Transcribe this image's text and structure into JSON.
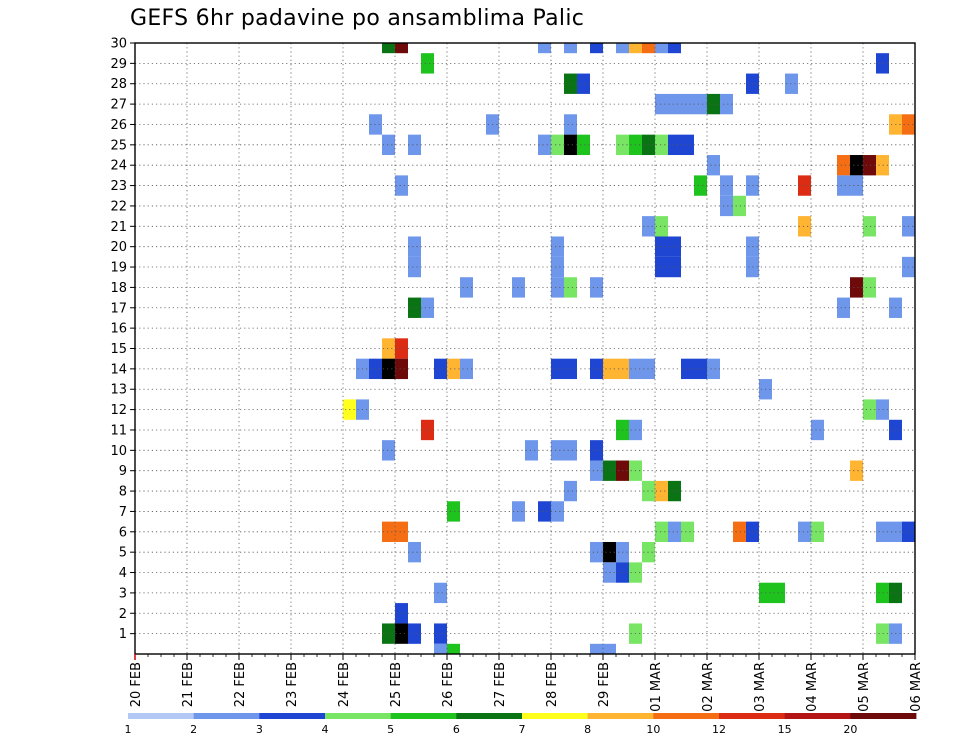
{
  "chart_data": {
    "type": "heatmap",
    "title": "GEFS 6hr padavine po ansamblima Palic",
    "y_ticks": [
      1,
      2,
      3,
      4,
      5,
      6,
      7,
      8,
      9,
      10,
      11,
      12,
      13,
      14,
      15,
      16,
      17,
      18,
      19,
      20,
      21,
      22,
      23,
      24,
      25,
      26,
      27,
      28,
      29,
      30
    ],
    "ylim": [
      0,
      30
    ],
    "x_ticks": [
      "20 FEB",
      "21 FEB",
      "22 FEB",
      "23 FEB",
      "24 FEB",
      "25 FEB",
      "26 FEB",
      "27 FEB",
      "28 FEB",
      "29 FEB",
      "01 MAR",
      "02 MAR",
      "03 MAR",
      "04 MAR",
      "05 MAR",
      "06 MAR"
    ],
    "x_step": "6hr",
    "grid": true,
    "colorbar": {
      "labels": [
        "1",
        "2",
        "3",
        "4",
        "5",
        "6",
        "7",
        "8",
        "10",
        "12",
        "15",
        "20"
      ],
      "colors": [
        "#b4c8f5",
        "#6e96eb",
        "#1e46d2",
        "#78e664",
        "#1ec31e",
        "#0a7314",
        "#ffff1e",
        "#ffb432",
        "#f56e14",
        "#dc2d14",
        "#b41414",
        "#6e0a0a"
      ]
    },
    "cells": [
      [
        19,
        30,
        5
      ],
      [
        20,
        30,
        11
      ],
      [
        31,
        30,
        1
      ],
      [
        33,
        30,
        1
      ],
      [
        35,
        30,
        2
      ],
      [
        37,
        30,
        1
      ],
      [
        38,
        30,
        7
      ],
      [
        39,
        30,
        8
      ],
      [
        40,
        30,
        1
      ],
      [
        41,
        30,
        2
      ],
      [
        22,
        29,
        4
      ],
      [
        57,
        29,
        2
      ],
      [
        33,
        28,
        5
      ],
      [
        34,
        28,
        2
      ],
      [
        47,
        28,
        2
      ],
      [
        50,
        28,
        1
      ],
      [
        40,
        27,
        1
      ],
      [
        41,
        27,
        1
      ],
      [
        42,
        27,
        1
      ],
      [
        43,
        27,
        1
      ],
      [
        44,
        27,
        5
      ],
      [
        45,
        27,
        1
      ],
      [
        18,
        26,
        1
      ],
      [
        27,
        26,
        1
      ],
      [
        33,
        26,
        1
      ],
      [
        58,
        26,
        7
      ],
      [
        59,
        26,
        8
      ],
      [
        19,
        25,
        1
      ],
      [
        21,
        25,
        1
      ],
      [
        31,
        25,
        1
      ],
      [
        32,
        25,
        3
      ],
      [
        33,
        25,
        12
      ],
      [
        34,
        25,
        4
      ],
      [
        37,
        25,
        3
      ],
      [
        38,
        25,
        4
      ],
      [
        39,
        25,
        5
      ],
      [
        40,
        25,
        3
      ],
      [
        41,
        25,
        2
      ],
      [
        42,
        25,
        2
      ],
      [
        44,
        24,
        1
      ],
      [
        54,
        24,
        8
      ],
      [
        55,
        24,
        12
      ],
      [
        56,
        24,
        11
      ],
      [
        57,
        24,
        7
      ],
      [
        20,
        23,
        1
      ],
      [
        43,
        23,
        4
      ],
      [
        45,
        23,
        1
      ],
      [
        47,
        23,
        1
      ],
      [
        51,
        23,
        9
      ],
      [
        54,
        23,
        1
      ],
      [
        55,
        23,
        1
      ],
      [
        45,
        22,
        1
      ],
      [
        46,
        22,
        3
      ],
      [
        39,
        21,
        1
      ],
      [
        40,
        21,
        3
      ],
      [
        51,
        21,
        7
      ],
      [
        56,
        21,
        3
      ],
      [
        59,
        21,
        1
      ],
      [
        21,
        20,
        1
      ],
      [
        32,
        20,
        1
      ],
      [
        40,
        20,
        2
      ],
      [
        41,
        20,
        2
      ],
      [
        47,
        20,
        1
      ],
      [
        21,
        19,
        1
      ],
      [
        32,
        19,
        1
      ],
      [
        40,
        19,
        2
      ],
      [
        41,
        19,
        2
      ],
      [
        47,
        19,
        1
      ],
      [
        59,
        19,
        1
      ],
      [
        25,
        18,
        1
      ],
      [
        29,
        18,
        1
      ],
      [
        32,
        18,
        1
      ],
      [
        33,
        18,
        3
      ],
      [
        35,
        18,
        1
      ],
      [
        55,
        18,
        11
      ],
      [
        56,
        18,
        3
      ],
      [
        21,
        17,
        5
      ],
      [
        22,
        17,
        1
      ],
      [
        54,
        17,
        1
      ],
      [
        58,
        17,
        1
      ],
      [
        19,
        15,
        7
      ],
      [
        20,
        15,
        9
      ],
      [
        17,
        14,
        1
      ],
      [
        18,
        14,
        2
      ],
      [
        19,
        14,
        12
      ],
      [
        20,
        14,
        11
      ],
      [
        23,
        14,
        2
      ],
      [
        24,
        14,
        7
      ],
      [
        25,
        14,
        1
      ],
      [
        32,
        14,
        2
      ],
      [
        33,
        14,
        2
      ],
      [
        35,
        14,
        2
      ],
      [
        36,
        14,
        7
      ],
      [
        37,
        14,
        7
      ],
      [
        38,
        14,
        1
      ],
      [
        39,
        14,
        1
      ],
      [
        42,
        14,
        2
      ],
      [
        43,
        14,
        2
      ],
      [
        44,
        14,
        1
      ],
      [
        48,
        13,
        1
      ],
      [
        16,
        12,
        6
      ],
      [
        17,
        12,
        1
      ],
      [
        56,
        12,
        3
      ],
      [
        57,
        12,
        1
      ],
      [
        22,
        11,
        9
      ],
      [
        37,
        11,
        4
      ],
      [
        38,
        11,
        1
      ],
      [
        52,
        11,
        1
      ],
      [
        58,
        11,
        2
      ],
      [
        19,
        10,
        1
      ],
      [
        30,
        10,
        1
      ],
      [
        32,
        10,
        1
      ],
      [
        33,
        10,
        1
      ],
      [
        35,
        10,
        2
      ],
      [
        35,
        9,
        1
      ],
      [
        36,
        9,
        5
      ],
      [
        37,
        9,
        11
      ],
      [
        38,
        9,
        3
      ],
      [
        55,
        9,
        7
      ],
      [
        33,
        8,
        1
      ],
      [
        39,
        8,
        3
      ],
      [
        40,
        8,
        7
      ],
      [
        41,
        8,
        5
      ],
      [
        24,
        7,
        4
      ],
      [
        29,
        7,
        1
      ],
      [
        31,
        7,
        2
      ],
      [
        32,
        7,
        1
      ],
      [
        19,
        6,
        8
      ],
      [
        20,
        6,
        8
      ],
      [
        40,
        6,
        3
      ],
      [
        41,
        6,
        1
      ],
      [
        42,
        6,
        3
      ],
      [
        46,
        6,
        8
      ],
      [
        47,
        6,
        2
      ],
      [
        51,
        6,
        1
      ],
      [
        52,
        6,
        3
      ],
      [
        57,
        6,
        1
      ],
      [
        58,
        6,
        1
      ],
      [
        59,
        6,
        2
      ],
      [
        21,
        5,
        1
      ],
      [
        35,
        5,
        1
      ],
      [
        36,
        5,
        12
      ],
      [
        37,
        5,
        1
      ],
      [
        39,
        5,
        3
      ],
      [
        36,
        4,
        1
      ],
      [
        37,
        4,
        2
      ],
      [
        38,
        4,
        3
      ],
      [
        23,
        3,
        1
      ],
      [
        48,
        3,
        4
      ],
      [
        49,
        3,
        4
      ],
      [
        57,
        3,
        4
      ],
      [
        58,
        3,
        5
      ],
      [
        20,
        2,
        2
      ],
      [
        19,
        1,
        5
      ],
      [
        20,
        1,
        12
      ],
      [
        21,
        1,
        2
      ],
      [
        23,
        1,
        2
      ],
      [
        38,
        1,
        3
      ],
      [
        57,
        1,
        3
      ],
      [
        58,
        1,
        1
      ],
      [
        23,
        0,
        1
      ],
      [
        24,
        0,
        4
      ],
      [
        35,
        0,
        1
      ],
      [
        36,
        0,
        1
      ]
    ]
  }
}
